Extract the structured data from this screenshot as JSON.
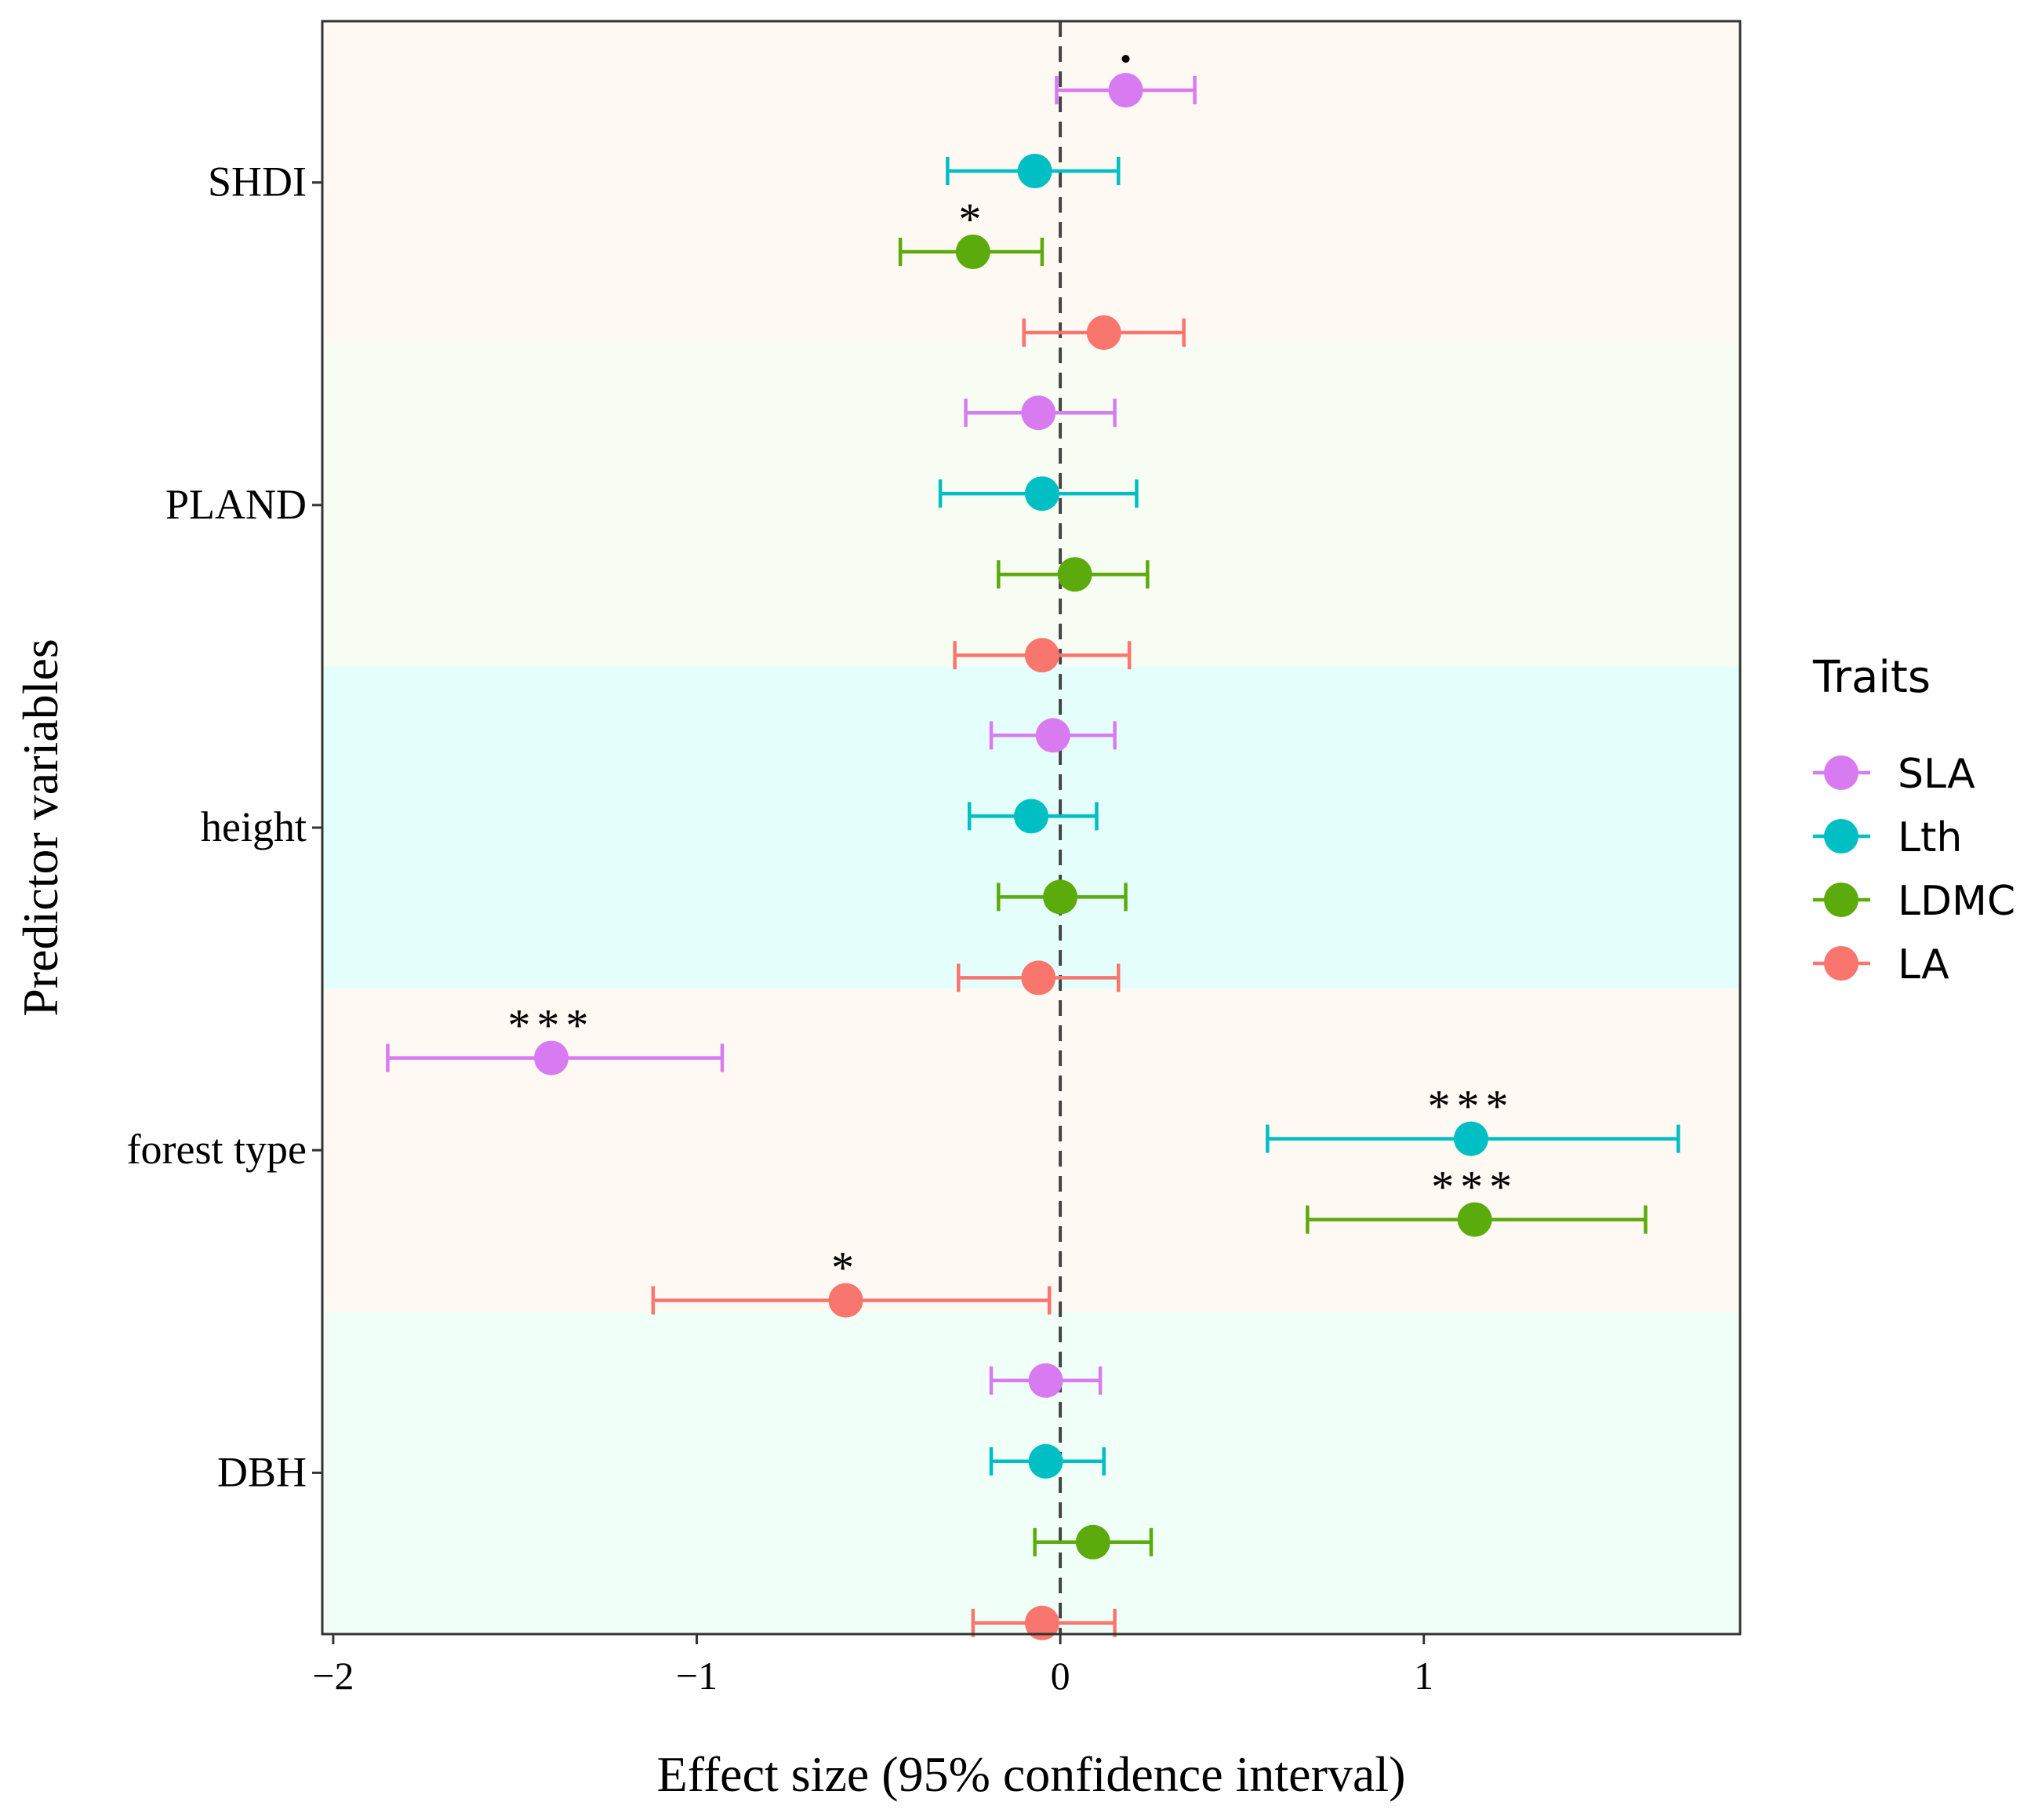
{
  "chart_data": {
    "type": "scatter",
    "subtype": "forest-plot",
    "title": "",
    "xlabel": "Effect size (95% confidence interval)",
    "ylabel": "Predictor variables",
    "xlim": [
      -2.03,
      1.87
    ],
    "xticks": [
      -2,
      -1,
      0,
      1
    ],
    "xtick_labels": [
      "−2",
      "−1",
      "0",
      "1"
    ],
    "reference_line": 0,
    "categories": [
      "SHDI",
      "PLAND",
      "height",
      "forest type",
      "DBH"
    ],
    "band_colors": [
      "#fff8f3",
      "#f8fdf3",
      "#e5fffd",
      "#fff8f3",
      "#f0fff7"
    ],
    "legend": {
      "title": "Traits",
      "position": "right"
    },
    "series": [
      {
        "name": "SLA",
        "color": "#d97bf0",
        "estimates": [
          0.18,
          -0.06,
          -0.02,
          -1.4,
          -0.04
        ],
        "lower": [
          -0.01,
          -0.26,
          -0.19,
          -1.85,
          -0.19
        ],
        "upper": [
          0.37,
          0.15,
          0.15,
          -0.93,
          0.11
        ],
        "significance": [
          "•",
          "",
          "",
          "***",
          ""
        ]
      },
      {
        "name": "Lth",
        "color": "#00bfc4",
        "estimates": [
          -0.07,
          -0.05,
          -0.08,
          1.13,
          -0.04
        ],
        "lower": [
          -0.31,
          -0.33,
          -0.25,
          0.57,
          -0.19
        ],
        "upper": [
          0.16,
          0.21,
          0.1,
          1.7,
          0.12
        ],
        "significance": [
          "",
          "",
          "",
          "***",
          ""
        ]
      },
      {
        "name": "LDMC",
        "color": "#5aab0b",
        "estimates": [
          -0.24,
          0.04,
          0.0,
          1.14,
          0.09
        ],
        "lower": [
          -0.44,
          -0.17,
          -0.17,
          0.68,
          -0.07
        ],
        "upper": [
          -0.05,
          0.24,
          0.18,
          1.61,
          0.25
        ],
        "significance": [
          "*",
          "",
          "",
          "***",
          ""
        ]
      },
      {
        "name": "LA",
        "color": "#f8766d",
        "estimates": [
          0.12,
          -0.05,
          -0.06,
          -0.59,
          -0.05
        ],
        "lower": [
          -0.1,
          -0.29,
          -0.28,
          -1.12,
          -0.24
        ],
        "upper": [
          0.34,
          0.19,
          0.16,
          -0.03,
          0.15
        ],
        "significance": [
          "",
          "",
          "",
          "*",
          ""
        ]
      }
    ]
  }
}
